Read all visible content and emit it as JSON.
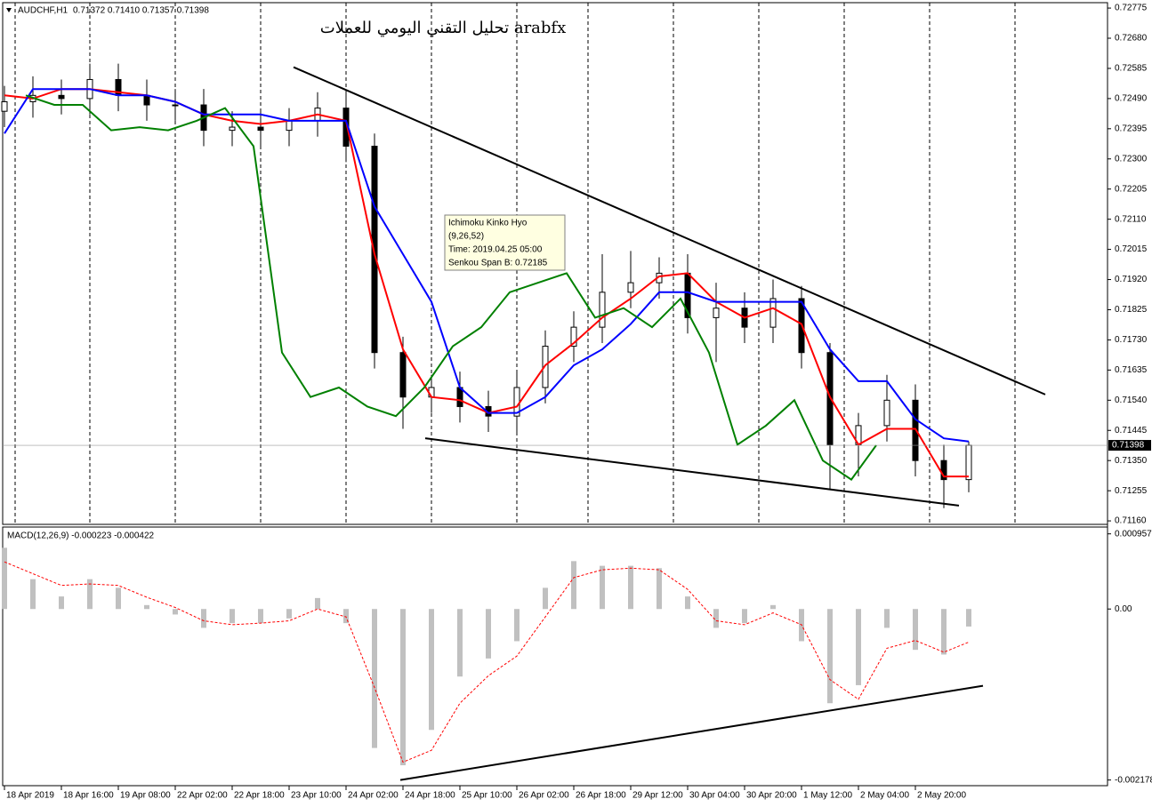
{
  "chart_data": [
    {
      "type": "candlestick",
      "title": "AUDCHF,H1",
      "subtitle": "0.71372 0.71410 0.71357 0.71398",
      "annotation": "تحليل التقني اليومي للعملات arabfx",
      "tooltip": [
        "Ichimoku Kinko Hyo",
        "(9,26,52)",
        "Time: 2019.04.25 05:00",
        "Senkou Span B: 0.72185"
      ],
      "x": [
        0,
        8,
        16,
        24,
        32,
        40,
        48,
        56,
        64,
        72,
        80,
        88,
        96,
        104,
        112,
        120,
        128,
        136,
        144,
        152,
        160,
        168,
        176,
        184,
        192,
        200,
        208,
        216,
        224,
        232,
        240,
        248,
        256,
        264,
        271
      ],
      "open": [
        0.7245,
        0.7248,
        0.725,
        0.7249,
        0.7255,
        0.725,
        0.7247,
        0.7247,
        0.7239,
        0.724,
        0.7239,
        0.7242,
        0.7246,
        0.7234,
        0.7169,
        0.7155,
        0.7158,
        0.7152,
        0.7149,
        0.7158,
        0.7171,
        0.7177,
        0.7188,
        0.7191,
        0.7194,
        0.718,
        0.7183,
        0.7177,
        0.7186,
        0.7169,
        0.714,
        0.7146,
        0.7154,
        0.7135,
        0.7129
      ],
      "high": [
        0.7253,
        0.7256,
        0.7255,
        0.726,
        0.726,
        0.7255,
        0.7252,
        0.7252,
        0.7245,
        0.7245,
        0.7246,
        0.7251,
        0.7251,
        0.7238,
        0.7174,
        0.7162,
        0.7163,
        0.7157,
        0.7163,
        0.7176,
        0.7182,
        0.72,
        0.7201,
        0.7199,
        0.72,
        0.7191,
        0.7188,
        0.7192,
        0.719,
        0.7172,
        0.715,
        0.7162,
        0.7159,
        0.714,
        0.7141
      ],
      "low": [
        0.724,
        0.7243,
        0.7244,
        0.7244,
        0.7245,
        0.7242,
        0.7242,
        0.7234,
        0.7234,
        0.7234,
        0.7234,
        0.7237,
        0.7229,
        0.7164,
        0.7145,
        0.715,
        0.7147,
        0.7144,
        0.7144,
        0.7153,
        0.7166,
        0.7172,
        0.7183,
        0.7186,
        0.7175,
        0.7166,
        0.7172,
        0.7172,
        0.7164,
        0.7126,
        0.713,
        0.7141,
        0.713,
        0.712,
        0.7125
      ],
      "close": [
        0.7248,
        0.725,
        0.7249,
        0.7255,
        0.725,
        0.7247,
        0.7247,
        0.7239,
        0.724,
        0.7239,
        0.7242,
        0.7246,
        0.7234,
        0.7169,
        0.7155,
        0.7158,
        0.7152,
        0.7149,
        0.7158,
        0.7171,
        0.7177,
        0.7188,
        0.7191,
        0.7194,
        0.718,
        0.7183,
        0.7177,
        0.7186,
        0.7169,
        0.714,
        0.7146,
        0.7154,
        0.7135,
        0.7129,
        0.71398
      ],
      "up_color": "#ffffff",
      "down_color": "#000000",
      "lines": [
        {
          "color": "#ff0000",
          "values": [
            0.725,
            0.7249,
            0.7252,
            0.7252,
            0.7251,
            0.725,
            0.7248,
            0.7244,
            0.7242,
            0.7241,
            0.7242,
            0.7244,
            0.7242,
            0.72,
            0.717,
            0.7155,
            0.7154,
            0.715,
            0.7152,
            0.7165,
            0.7172,
            0.718,
            0.7186,
            0.7193,
            0.7194,
            0.7185,
            0.718,
            0.7183,
            0.7178,
            0.7155,
            0.714,
            0.7145,
            0.7145,
            0.713,
            0.713
          ]
        },
        {
          "color": "#0000ff",
          "values": [
            0.7238,
            0.7252,
            0.7252,
            0.7252,
            0.725,
            0.725,
            0.7248,
            0.7244,
            0.7244,
            0.7244,
            0.7242,
            0.7242,
            0.7242,
            0.7215,
            0.72,
            0.7185,
            0.7158,
            0.715,
            0.715,
            0.7155,
            0.7165,
            0.717,
            0.7178,
            0.7188,
            0.7188,
            0.7185,
            0.7185,
            0.7185,
            0.7185,
            0.717,
            0.716,
            0.716,
            0.7148,
            0.7142,
            0.7141
          ]
        },
        {
          "color": "#008000",
          "x": [
            6,
            14,
            22,
            30,
            38,
            46,
            54,
            62,
            70,
            78,
            86,
            94,
            102,
            110,
            118,
            126,
            134,
            142,
            150,
            158,
            166,
            174,
            182,
            190,
            198,
            206,
            214,
            222,
            230,
            238,
            245
          ],
          "values": [
            0.725,
            0.7247,
            0.7247,
            0.7239,
            0.724,
            0.7239,
            0.7242,
            0.7246,
            0.7234,
            0.7169,
            0.7155,
            0.7158,
            0.7152,
            0.7149,
            0.7158,
            0.7171,
            0.7177,
            0.7188,
            0.7191,
            0.7194,
            0.718,
            0.7183,
            0.7177,
            0.7186,
            0.7169,
            0.714,
            0.7146,
            0.7154,
            0.7135,
            0.7129,
            0.71398
          ]
        }
      ],
      "trendlines": [
        {
          "color": "#000000",
          "x": [
            81.25,
            292.5
          ],
          "values": [
            0.72589,
            0.71558
          ]
        },
        {
          "color": "#000000",
          "x": [
            118.25,
            268.25
          ],
          "values": [
            0.7142,
            0.71208
          ]
        }
      ],
      "last_price": 0.71398,
      "xlim": [
        -0.5,
        310
      ],
      "ylim": [
        0.71149,
        0.72792
      ],
      "yticks": [
        0.72775,
        {
          "value": 0.7268,
          "label": "0.72680"
        },
        0.72585,
        {
          "value": 0.7249,
          "label": "0.72490"
        },
        0.72395,
        {
          "value": 0.723,
          "label": "0.72300"
        },
        0.72205,
        {
          "value": 0.7211,
          "label": "0.72110"
        },
        0.72015,
        {
          "value": 0.7192,
          "label": "0.71920"
        },
        0.71825,
        {
          "value": 0.7173,
          "label": "0.71730"
        },
        0.71635,
        {
          "value": 0.7154,
          "label": "0.71540"
        },
        0.71445,
        {
          "value": 0.7135,
          "label": "0.71350"
        },
        0.71255,
        {
          "value": 0.7116,
          "label": "0.71160"
        }
      ],
      "xticks": [
        {
          "value": 0,
          "label": "18 Apr 2019"
        },
        {
          "value": 16,
          "label": "18 Apr 16:00"
        },
        {
          "value": 32,
          "label": "19 Apr 08:00"
        },
        {
          "value": 48,
          "label": "22 Apr 02:00"
        },
        {
          "value": 64,
          "label": "22 Apr 18:00"
        },
        {
          "value": 80,
          "label": "23 Apr 10:00"
        },
        {
          "value": 96,
          "label": "24 Apr 02:00"
        },
        {
          "value": 112,
          "label": "24 Apr 18:00"
        },
        {
          "value": 128,
          "label": "25 Apr 10:00"
        },
        {
          "value": 144,
          "label": "26 Apr 02:00"
        },
        {
          "value": 160,
          "label": "26 Apr 18:00"
        },
        {
          "value": 176,
          "label": "29 Apr 12:00"
        },
        {
          "value": 192,
          "label": "30 Apr 04:00"
        },
        {
          "value": 208,
          "label": "30 Apr 20:00"
        },
        {
          "value": 224,
          "label": "1 May 12:00"
        },
        {
          "value": 240,
          "label": "2 May 04:00"
        },
        {
          "value": 256,
          "label": "2 May 20:00"
        }
      ],
      "vgrid": [
        3,
        24,
        48,
        72,
        96,
        120,
        144,
        164,
        188,
        212,
        236,
        260,
        284
      ]
    },
    {
      "type": "bar",
      "title": "MACD(12,26,9) -0.000223 -0.000422",
      "color": "#c0c0c0",
      "x": [
        0,
        8,
        16,
        24,
        32,
        40,
        48,
        56,
        64,
        72,
        80,
        88,
        96,
        104,
        112,
        120,
        128,
        136,
        144,
        152,
        160,
        168,
        176,
        184,
        192,
        200,
        208,
        216,
        224,
        232,
        240,
        248,
        256,
        264,
        271
      ],
      "values": [
        0.00078,
        0.00038,
        0.00016,
        0.00038,
        0.00027,
        5e-05,
        -7e-05,
        -0.00024,
        -0.00018,
        -0.00018,
        -0.00012,
        0.00014,
        -0.00018,
        -0.00177,
        -0.00199,
        -0.00154,
        -0.00086,
        -0.00063,
        -0.00041,
        0.00027,
        0.00061,
        0.00055,
        0.00055,
        0.00052,
        0.00016,
        -0.00024,
        -0.00018,
        5e-05,
        -0.00041,
        -0.0012,
        -0.00097,
        -0.00024,
        -0.00052,
        -0.00058,
        -0.000223
      ],
      "signal": {
        "color": "#ff0000",
        "values": [
          0.0006,
          0.00045,
          0.0003,
          0.00032,
          0.0003,
          0.00015,
          2e-05,
          -0.00015,
          -0.0002,
          -0.00018,
          -0.00015,
          0.0,
          -0.0001,
          -0.001,
          -0.00195,
          -0.0018,
          -0.0012,
          -0.00085,
          -0.0006,
          -0.0001,
          0.0004,
          0.0005,
          0.00052,
          0.0005,
          0.00025,
          -0.00015,
          -0.0002,
          -5e-05,
          -0.0002,
          -0.0009,
          -0.00115,
          -0.0005,
          -0.0004,
          -0.00055,
          -0.000422
        ]
      },
      "trendlines": [
        {
          "color": "#000000",
          "x": [
            111.25,
            275
          ],
          "values": [
            -0.002178,
            -0.000978
          ]
        }
      ],
      "xlim": [
        -0.5,
        310
      ],
      "ylim": [
        -0.00225,
        0.00101
      ],
      "yticks": [
        0.000957,
        {
          "value": 0,
          "label": "0.00"
        },
        -0.002178
      ]
    }
  ]
}
